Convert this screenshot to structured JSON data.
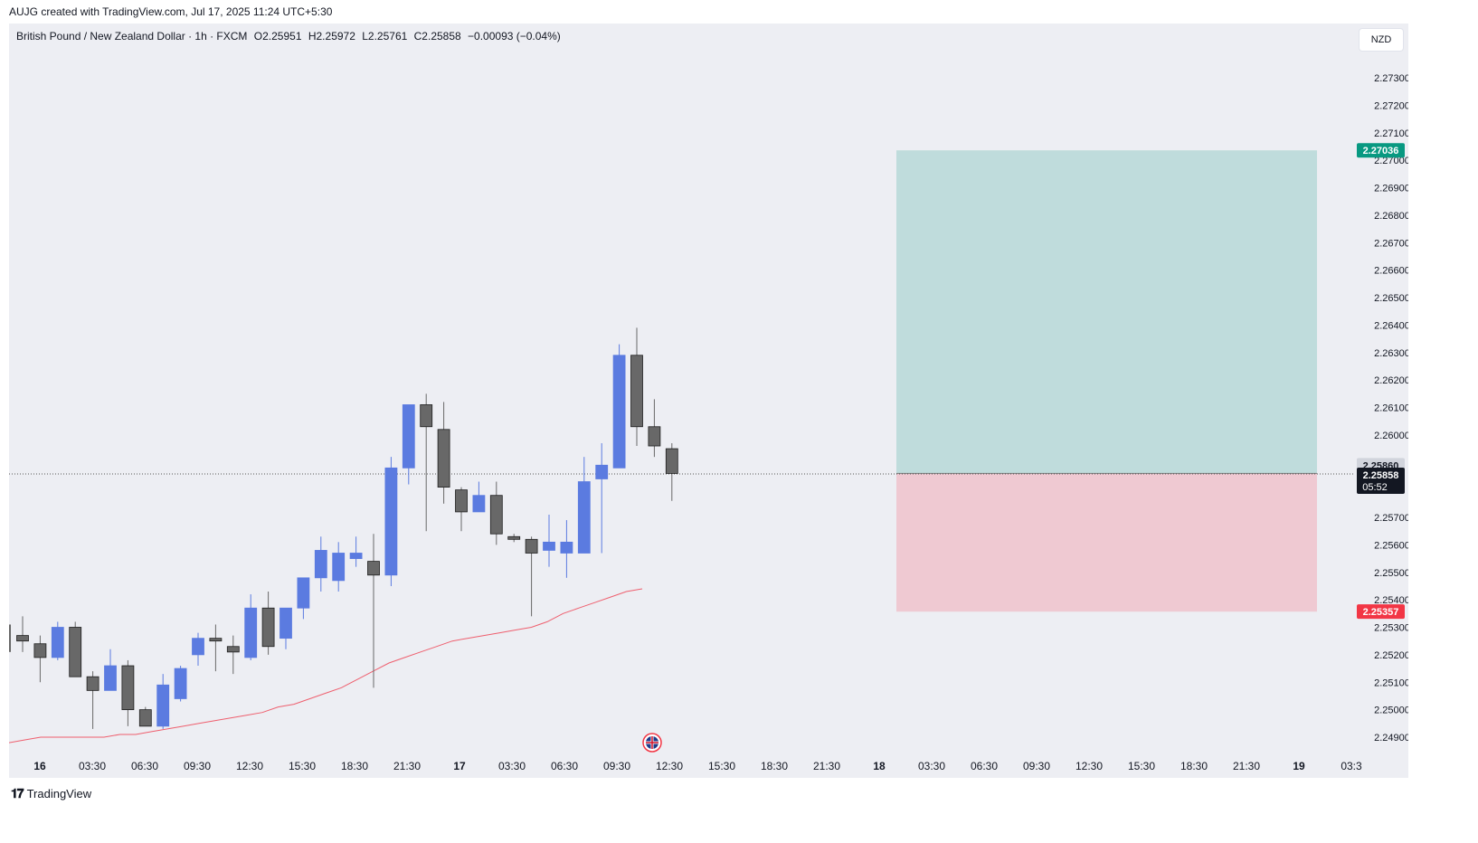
{
  "header": {
    "caption": "AUJG created with TradingView.com, Jul 17, 2025 11:24 UTC+5:30"
  },
  "legend": {
    "symbol": "British Pound / New Zealand Dollar · 1h · FXCM",
    "open": "O2.25951",
    "high": "H2.25972",
    "low": "L2.25761",
    "close": "C2.25858",
    "change": "−0.00093 (−0.04%)"
  },
  "currency_label": "NZD",
  "footer": {
    "brand": "TradingView",
    "logo": "tradingview-logo-icon"
  },
  "colors": {
    "bullish": "#5b7be0",
    "bearish": "#686868",
    "ma": "#ee5f6e",
    "target_zone": "#bfdcdc",
    "stop_zone": "#efc9d2",
    "target_tag": "#089981",
    "stop_tag": "#f23645",
    "price_tag": "#131722"
  },
  "chart_data": {
    "type": "candlestick",
    "y_axis": {
      "ticks": [
        "2.24900",
        "2.25000",
        "2.25100",
        "2.25200",
        "2.25300",
        "2.25400",
        "2.25500",
        "2.25600",
        "2.25700",
        "2.26000",
        "2.26100",
        "2.26200",
        "2.26300",
        "2.26400",
        "2.26500",
        "2.26600",
        "2.26700",
        "2.26800",
        "2.26900",
        "2.27000",
        "2.27100",
        "2.27200",
        "2.27300"
      ],
      "range": [
        2.2486,
        2.2755
      ]
    },
    "x_axis": {
      "ticks": [
        "16",
        "03:30",
        "06:30",
        "09:30",
        "12:30",
        "15:30",
        "18:30",
        "21:30",
        "17",
        "03:30",
        "06:30",
        "09:30",
        "12:30",
        "15:30",
        "18:30",
        "21:30",
        "18",
        "03:30",
        "06:30",
        "09:30",
        "12:30",
        "15:30",
        "18:30",
        "21:30",
        "19",
        "03:3"
      ]
    },
    "candles": [
      {
        "o": 2.2527,
        "h": 2.2534,
        "l": 2.2521,
        "c": 2.2525
      },
      {
        "o": 2.2524,
        "h": 2.2527,
        "l": 2.251,
        "c": 2.2519
      },
      {
        "o": 2.2519,
        "h": 2.2532,
        "l": 2.2518,
        "c": 2.253
      },
      {
        "o": 2.253,
        "h": 2.2532,
        "l": 2.2512,
        "c": 2.2512
      },
      {
        "o": 2.2512,
        "h": 2.2514,
        "l": 2.2493,
        "c": 2.2507
      },
      {
        "o": 2.2507,
        "h": 2.2522,
        "l": 2.2507,
        "c": 2.2516
      },
      {
        "o": 2.2516,
        "h": 2.2518,
        "l": 2.2494,
        "c": 2.25
      },
      {
        "o": 2.25,
        "h": 2.2501,
        "l": 2.2494,
        "c": 2.2494
      },
      {
        "o": 2.2494,
        "h": 2.2513,
        "l": 2.2493,
        "c": 2.2509
      },
      {
        "o": 2.2504,
        "h": 2.2516,
        "l": 2.2503,
        "c": 2.2515
      },
      {
        "o": 2.252,
        "h": 2.2528,
        "l": 2.2516,
        "c": 2.2526
      },
      {
        "o": 2.2526,
        "h": 2.2531,
        "l": 2.2514,
        "c": 2.2525
      },
      {
        "o": 2.2523,
        "h": 2.2527,
        "l": 2.2513,
        "c": 2.2521
      },
      {
        "o": 2.2519,
        "h": 2.2542,
        "l": 2.2518,
        "c": 2.2537
      },
      {
        "o": 2.2537,
        "h": 2.2543,
        "l": 2.252,
        "c": 2.2523
      },
      {
        "o": 2.2526,
        "h": 2.2537,
        "l": 2.2522,
        "c": 2.2537
      },
      {
        "o": 2.2537,
        "h": 2.2548,
        "l": 2.2533,
        "c": 2.2548
      },
      {
        "o": 2.2548,
        "h": 2.2563,
        "l": 2.2543,
        "c": 2.2558
      },
      {
        "o": 2.2547,
        "h": 2.2561,
        "l": 2.2543,
        "c": 2.2557
      },
      {
        "o": 2.2555,
        "h": 2.2563,
        "l": 2.2552,
        "c": 2.2557
      },
      {
        "o": 2.2554,
        "h": 2.2564,
        "l": 2.2508,
        "c": 2.2549
      },
      {
        "o": 2.2549,
        "h": 2.2592,
        "l": 2.2545,
        "c": 2.2588
      },
      {
        "o": 2.2588,
        "h": 2.261,
        "l": 2.2582,
        "c": 2.2611
      },
      {
        "o": 2.2611,
        "h": 2.2615,
        "l": 2.2565,
        "c": 2.2603
      },
      {
        "o": 2.2602,
        "h": 2.2612,
        "l": 2.2575,
        "c": 2.2581
      },
      {
        "o": 2.258,
        "h": 2.2581,
        "l": 2.2565,
        "c": 2.2572
      },
      {
        "o": 2.2572,
        "h": 2.2583,
        "l": 2.2572,
        "c": 2.2578
      },
      {
        "o": 2.2578,
        "h": 2.2583,
        "l": 2.256,
        "c": 2.2564
      },
      {
        "o": 2.2563,
        "h": 2.2564,
        "l": 2.2561,
        "c": 2.2562
      },
      {
        "o": 2.2562,
        "h": 2.2563,
        "l": 2.2534,
        "c": 2.2557
      },
      {
        "o": 2.2558,
        "h": 2.2571,
        "l": 2.2552,
        "c": 2.2561
      },
      {
        "o": 2.2557,
        "h": 2.2569,
        "l": 2.2548,
        "c": 2.2561
      },
      {
        "o": 2.2557,
        "h": 2.2592,
        "l": 2.2557,
        "c": 2.2583
      },
      {
        "o": 2.2584,
        "h": 2.2597,
        "l": 2.2557,
        "c": 2.2589
      },
      {
        "o": 2.2588,
        "h": 2.2633,
        "l": 2.2588,
        "c": 2.2629
      },
      {
        "o": 2.2629,
        "h": 2.2639,
        "l": 2.2596,
        "c": 2.2603
      },
      {
        "o": 2.2603,
        "h": 2.2613,
        "l": 2.2592,
        "c": 2.2596
      },
      {
        "o": 2.2595,
        "h": 2.2597,
        "l": 2.2576,
        "c": 2.2586
      }
    ],
    "ma_series": {
      "values": [
        2.2488,
        2.2489,
        2.249,
        2.249,
        2.249,
        2.249,
        2.249,
        2.2491,
        2.2491,
        2.2492,
        2.2493,
        2.2494,
        2.2495,
        2.2496,
        2.2497,
        2.2498,
        2.2499,
        2.2501,
        2.2502,
        2.2504,
        2.2506,
        2.2508,
        2.2511,
        2.2514,
        2.2517,
        2.2519,
        2.2521,
        2.2523,
        2.2525,
        2.2526,
        2.2527,
        2.2528,
        2.2529,
        2.253,
        2.2532,
        2.2535,
        2.2537,
        2.2539,
        2.2541,
        2.2543,
        2.2544
      ]
    },
    "last_price": 2.25858,
    "position": {
      "entry": 2.2586,
      "take_profit": 2.27036,
      "stop_loss": 2.25357
    },
    "price_labels": {
      "target": "2.27036",
      "entry": "2.25860",
      "close": "2.25858",
      "countdown": "05:52",
      "stop": "2.25357"
    },
    "event_marker": "gb-flag-icon"
  }
}
